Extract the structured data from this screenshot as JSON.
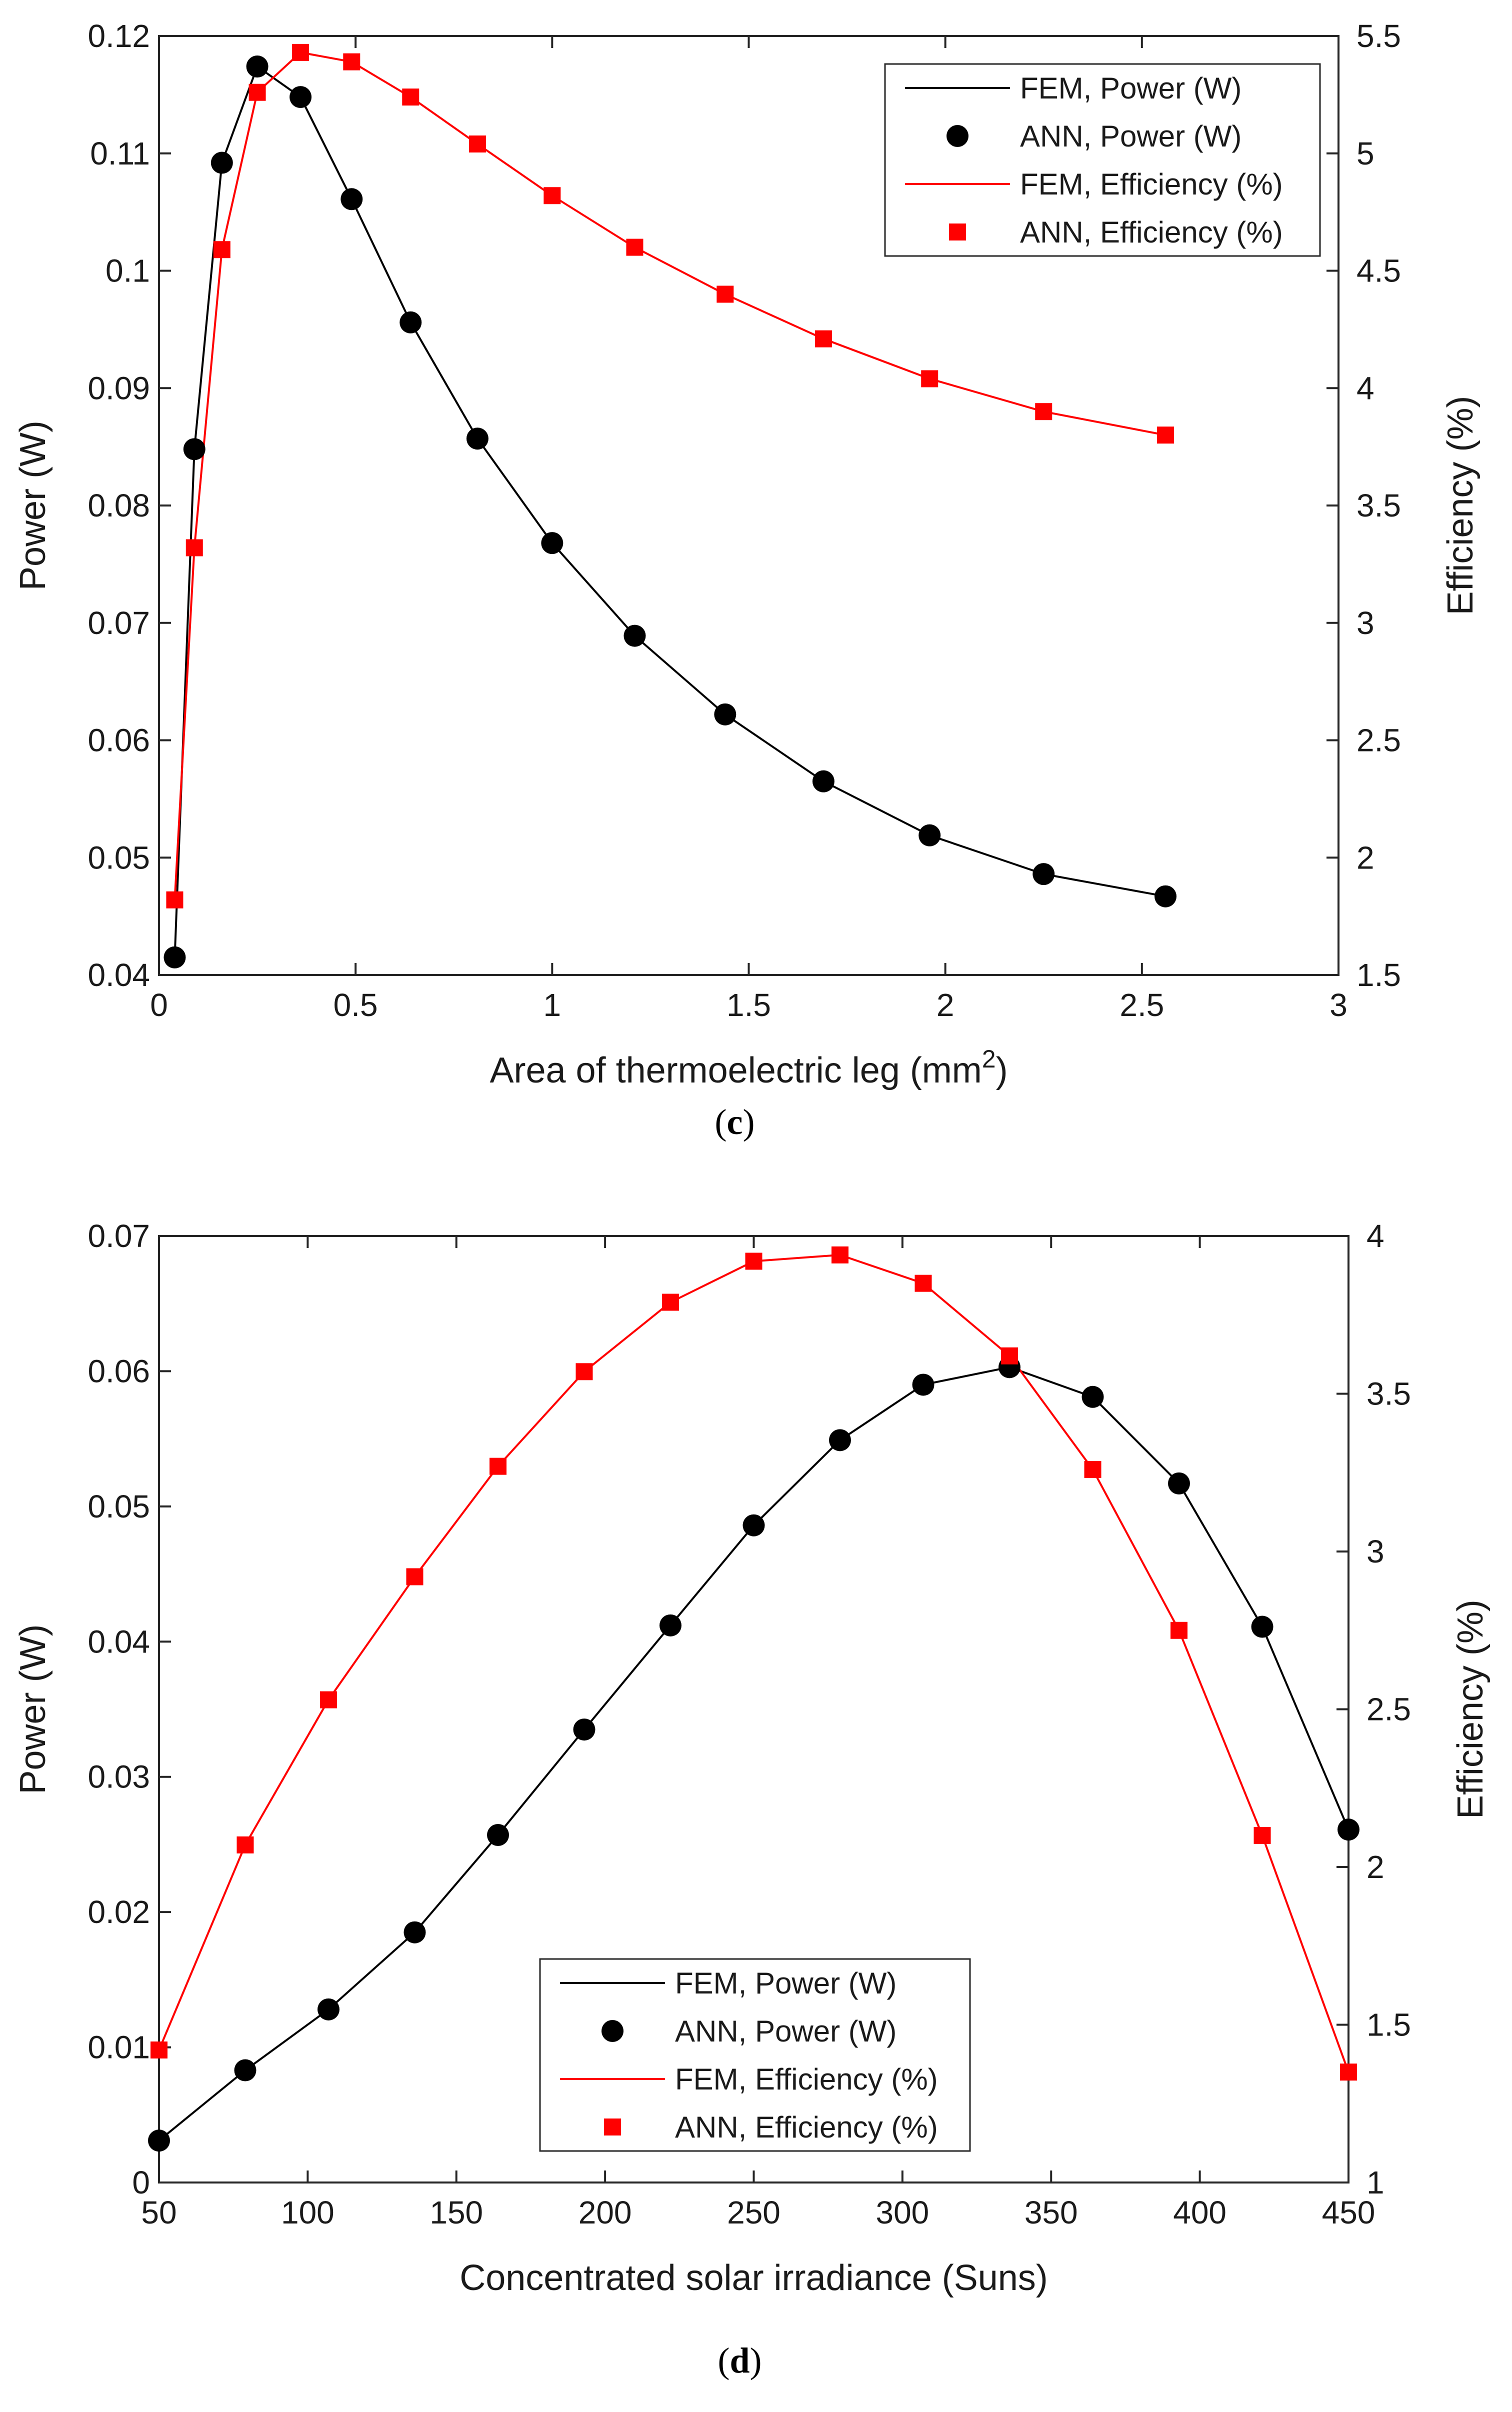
{
  "colors": {
    "power": "#000000",
    "efficiency": "#ff0000",
    "axis": "#262626"
  },
  "chart_data": [
    {
      "id": "c",
      "type": "line",
      "panel_label": "c",
      "xlabel": "Area of thermoelectric leg (mm",
      "xlabel_sup": "2",
      "xlabel_close": ")",
      "ylabel": "Power (W)",
      "y2label": "Efficiency (%)",
      "xlim": [
        0,
        3
      ],
      "ylim": [
        0.04,
        0.12
      ],
      "y2lim": [
        1.5,
        5.5
      ],
      "xticks": [
        0,
        0.5,
        1,
        1.5,
        2,
        2.5,
        3
      ],
      "xtick_labels": [
        "0",
        "0.5",
        "1",
        "1.5",
        "2",
        "2.5",
        "3"
      ],
      "yticks": [
        0.04,
        0.05,
        0.06,
        0.07,
        0.08,
        0.09,
        0.1,
        0.11,
        0.12
      ],
      "ytick_labels": [
        "0.04",
        "0.05",
        "0.06",
        "0.07",
        "0.08",
        "0.09",
        "0.1",
        "0.11",
        "0.12"
      ],
      "y2ticks": [
        1.5,
        2,
        2.5,
        3,
        3.5,
        4,
        4.5,
        5,
        5.5
      ],
      "y2tick_labels": [
        "1.5",
        "2",
        "2.5",
        "3",
        "3.5",
        "4",
        "4.5",
        "5",
        "5.5"
      ],
      "legend_position": "top-right",
      "x": [
        0.04,
        0.09,
        0.16,
        0.25,
        0.36,
        0.49,
        0.64,
        0.81,
        1.0,
        1.21,
        1.44,
        1.69,
        1.96,
        2.25,
        2.56
      ],
      "series": [
        {
          "name": "FEM, Power (W)",
          "axis": "left",
          "style": "line",
          "color": "#000000",
          "values": [
            0.0415,
            0.0848,
            0.1092,
            0.1174,
            0.1148,
            0.1061,
            0.0956,
            0.0857,
            0.0768,
            0.0689,
            0.0622,
            0.0565,
            0.0519,
            0.0486,
            0.0467
          ]
        },
        {
          "name": "ANN, Power (W)",
          "axis": "left",
          "style": "circle",
          "color": "#000000",
          "values": [
            0.0415,
            0.0848,
            0.1092,
            0.1174,
            0.1148,
            0.1061,
            0.0956,
            0.0857,
            0.0768,
            0.0689,
            0.0622,
            0.0565,
            0.0519,
            0.0486,
            0.0467
          ]
        },
        {
          "name": "FEM, Efficiency (%)",
          "axis": "right",
          "style": "line",
          "color": "#ff0000",
          "values": [
            1.82,
            3.32,
            4.59,
            5.26,
            5.43,
            5.39,
            5.24,
            5.04,
            4.82,
            4.6,
            4.4,
            4.21,
            4.04,
            3.9,
            3.8
          ]
        },
        {
          "name": "ANN, Efficiency (%)",
          "axis": "right",
          "style": "square",
          "color": "#ff0000",
          "values": [
            1.82,
            3.32,
            4.59,
            5.26,
            5.43,
            5.39,
            5.24,
            5.04,
            4.82,
            4.6,
            4.4,
            4.21,
            4.04,
            3.9,
            3.8
          ]
        }
      ]
    },
    {
      "id": "d",
      "type": "line",
      "panel_label": "d",
      "xlabel": "Concentrated solar irradiance (Suns)",
      "xlabel_sup": "",
      "xlabel_close": "",
      "ylabel": "Power (W)",
      "y2label": "Efficiency (%)",
      "xlim": [
        50,
        450
      ],
      "ylim": [
        0,
        0.07
      ],
      "y2lim": [
        1,
        4
      ],
      "xticks": [
        50,
        100,
        150,
        200,
        250,
        300,
        350,
        400,
        450
      ],
      "xtick_labels": [
        "50",
        "100",
        "150",
        "200",
        "250",
        "300",
        "350",
        "400",
        "450"
      ],
      "yticks": [
        0,
        0.01,
        0.02,
        0.03,
        0.04,
        0.05,
        0.06,
        0.07
      ],
      "ytick_labels": [
        "0",
        "0.01",
        "0.02",
        "0.03",
        "0.04",
        "0.05",
        "0.06",
        "0.07"
      ],
      "y2ticks": [
        1,
        1.5,
        2,
        2.5,
        3,
        3.5,
        4
      ],
      "y2tick_labels": [
        "1",
        "1.5",
        "2",
        "2.5",
        "3",
        "3.5",
        "4"
      ],
      "legend_position": "bottom-center",
      "x": [
        50,
        79,
        107,
        136,
        164,
        193,
        222,
        250,
        279,
        307,
        336,
        364,
        393,
        421,
        450
      ],
      "series": [
        {
          "name": "FEM, Power (W)",
          "axis": "left",
          "style": "line",
          "color": "#000000",
          "values": [
            0.0031,
            0.0083,
            0.0128,
            0.0185,
            0.0257,
            0.0335,
            0.0412,
            0.0486,
            0.0549,
            0.059,
            0.0603,
            0.0581,
            0.0517,
            0.0411,
            0.0261
          ]
        },
        {
          "name": "ANN, Power (W)",
          "axis": "left",
          "style": "circle",
          "color": "#000000",
          "values": [
            0.0031,
            0.0083,
            0.0128,
            0.0185,
            0.0257,
            0.0335,
            0.0412,
            0.0486,
            0.0549,
            0.059,
            0.0603,
            0.0581,
            0.0517,
            0.0411,
            0.0261
          ]
        },
        {
          "name": "FEM, Efficiency (%)",
          "axis": "right",
          "style": "line",
          "color": "#ff0000",
          "values": [
            1.42,
            2.07,
            2.53,
            2.92,
            3.27,
            3.57,
            3.79,
            3.92,
            3.94,
            3.85,
            3.62,
            3.26,
            2.75,
            2.1,
            1.35
          ]
        },
        {
          "name": "ANN, Efficiency (%)",
          "axis": "right",
          "style": "square",
          "color": "#ff0000",
          "values": [
            1.42,
            2.07,
            2.53,
            2.92,
            3.27,
            3.57,
            3.79,
            3.92,
            3.94,
            3.85,
            3.62,
            3.26,
            2.75,
            2.1,
            1.35
          ]
        }
      ]
    }
  ]
}
